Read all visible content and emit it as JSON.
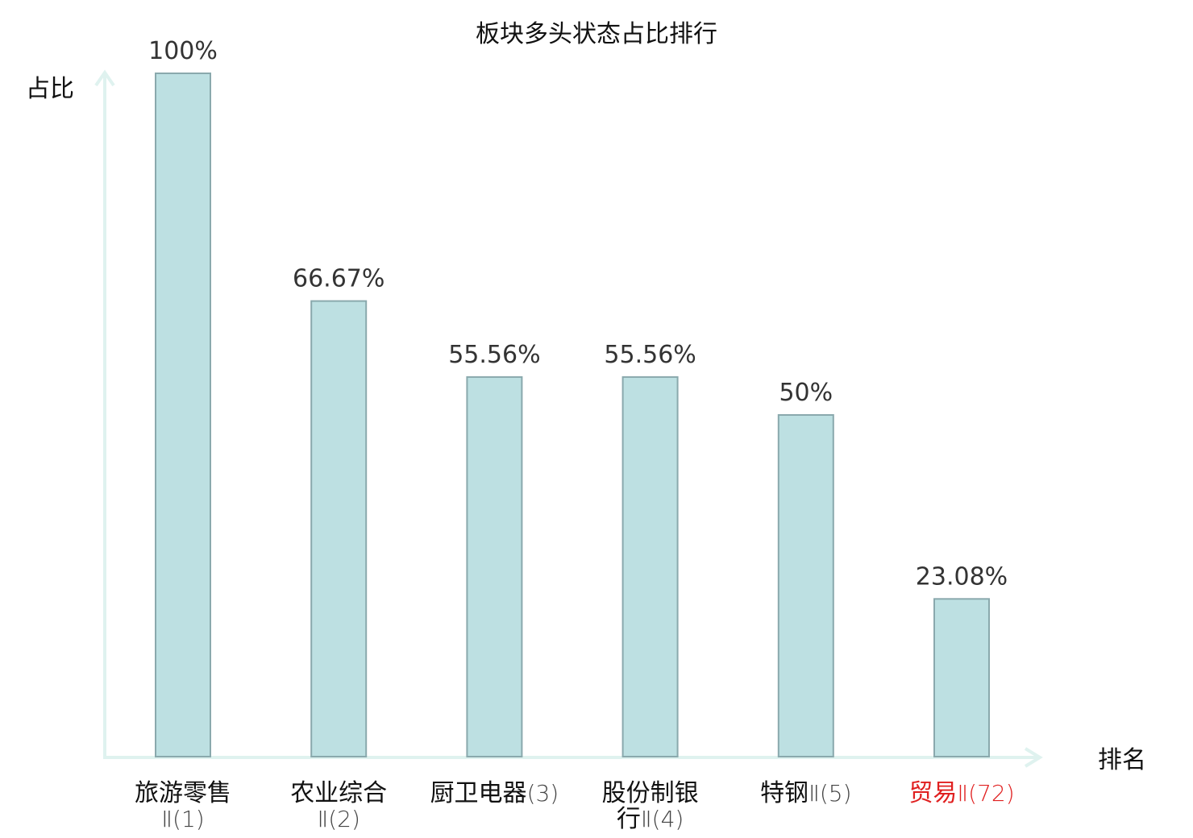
{
  "chart_data": {
    "type": "bar",
    "title": "板块多头状态占比排行",
    "xlabel": "排名",
    "ylabel": "占比",
    "ylim": [
      0,
      100
    ],
    "grid": false,
    "categories": [
      {
        "line1": "旅游零售",
        "line2": "Ⅱ(1)",
        "highlight": false
      },
      {
        "line1": "农业综合",
        "line2": "Ⅱ(2)",
        "highlight": false
      },
      {
        "line1": "厨卫电器(3)",
        "line2": "",
        "highlight": false
      },
      {
        "line1": "股份制银",
        "line2": "行Ⅱ(4)",
        "highlight": false
      },
      {
        "line1": "特钢Ⅱ(5)",
        "line2": "",
        "highlight": false
      },
      {
        "line1": "贸易Ⅱ(72)",
        "line2": "",
        "highlight": true
      }
    ],
    "values": [
      100,
      66.67,
      55.56,
      55.56,
      50,
      23.08
    ],
    "value_labels": [
      "100%",
      "66.67%",
      "55.56%",
      "55.56%",
      "50%",
      "23.08%"
    ]
  },
  "colors": {
    "bar_fill": "#bde0e2",
    "bar_stroke": "#8aa9ad",
    "axis": "#dff2ef",
    "highlight_text": "#e02020"
  }
}
